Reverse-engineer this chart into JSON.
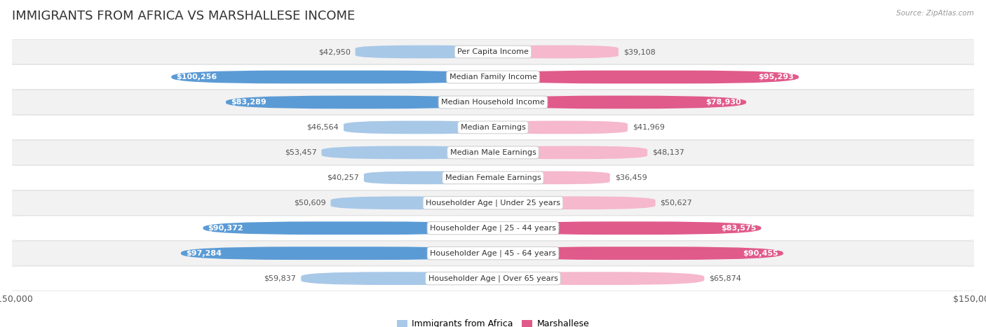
{
  "title": "IMMIGRANTS FROM AFRICA VS MARSHALLESE INCOME",
  "source": "Source: ZipAtlas.com",
  "categories": [
    "Per Capita Income",
    "Median Family Income",
    "Median Household Income",
    "Median Earnings",
    "Median Male Earnings",
    "Median Female Earnings",
    "Householder Age | Under 25 years",
    "Householder Age | 25 - 44 years",
    "Householder Age | 45 - 64 years",
    "Householder Age | Over 65 years"
  ],
  "africa_values": [
    42950,
    100256,
    83289,
    46564,
    53457,
    40257,
    50609,
    90372,
    97284,
    59837
  ],
  "marshallese_values": [
    39108,
    95293,
    78930,
    41969,
    48137,
    36459,
    50627,
    83575,
    90455,
    65874
  ],
  "africa_labels": [
    "$42,950",
    "$100,256",
    "$83,289",
    "$46,564",
    "$53,457",
    "$40,257",
    "$50,609",
    "$90,372",
    "$97,284",
    "$59,837"
  ],
  "marshallese_labels": [
    "$39,108",
    "$95,293",
    "$78,930",
    "$41,969",
    "$48,137",
    "$36,459",
    "$50,627",
    "$83,575",
    "$90,455",
    "$65,874"
  ],
  "africa_color_light": "#a8c8e8",
  "africa_color_dark": "#5b9bd5",
  "marshallese_color_light": "#f5b8cc",
  "marshallese_color_dark": "#e05a8a",
  "max_value": 150000,
  "bar_height": 0.52,
  "background_color": "#ffffff",
  "row_bg_colors": [
    "#f2f2f2",
    "#ffffff"
  ],
  "label_threshold": 70000,
  "title_fontsize": 13,
  "axis_fontsize": 9,
  "label_fontsize": 8,
  "category_fontsize": 8,
  "legend_africa_color": "#a8c8e8",
  "legend_marsh_color": "#e05a8a"
}
